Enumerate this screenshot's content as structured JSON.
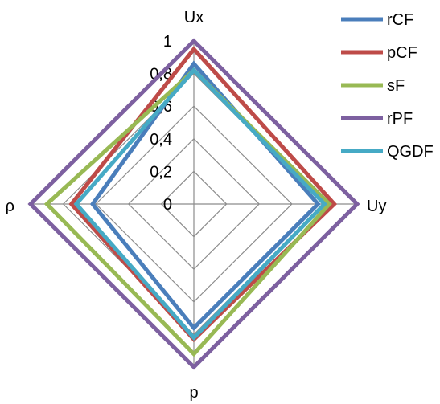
{
  "chart_data": {
    "type": "radar",
    "axes": [
      "Ux",
      "Uy",
      "p",
      "ρ"
    ],
    "range": [
      0,
      1
    ],
    "tick_values": [
      0,
      0.2,
      0.4,
      0.6,
      0.8,
      1
    ],
    "tick_labels": [
      "0",
      "0,2",
      "0,4",
      "0,6",
      "0,8",
      "1"
    ],
    "grid": true,
    "legend_position": "right",
    "series": [
      {
        "name": "rCF",
        "color": "#4a7ebb",
        "values": [
          0.86,
          0.76,
          0.76,
          0.62
        ]
      },
      {
        "name": "pCF",
        "color": "#be4b48",
        "values": [
          0.95,
          0.86,
          0.83,
          0.75
        ]
      },
      {
        "name": "sF",
        "color": "#98b954",
        "values": [
          0.82,
          0.83,
          0.92,
          0.9
        ]
      },
      {
        "name": "rPF",
        "color": "#7d60a0",
        "values": [
          1.0,
          1.0,
          1.0,
          1.0
        ]
      },
      {
        "name": "QGDF",
        "color": "#46aac5",
        "values": [
          0.82,
          0.8,
          0.82,
          0.72
        ]
      }
    ]
  }
}
